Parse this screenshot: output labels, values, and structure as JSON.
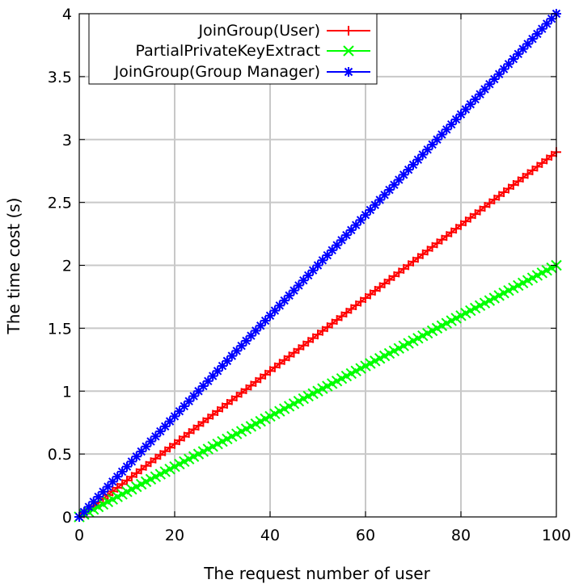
{
  "chart_data": {
    "type": "line",
    "title": "",
    "xlabel": "The request number of user",
    "ylabel": "The time cost (s)",
    "xlim": [
      0,
      100
    ],
    "ylim": [
      0,
      4
    ],
    "xticks": [
      0,
      20,
      40,
      60,
      80,
      100
    ],
    "yticks": [
      0,
      0.5,
      1,
      1.5,
      2,
      2.5,
      3,
      3.5,
      4
    ],
    "xtick_labels": [
      "0",
      "20",
      "40",
      "60",
      "80",
      "100"
    ],
    "ytick_labels": [
      "0",
      "0.5",
      "1",
      "1.5",
      "2",
      "2.5",
      "3",
      "3.5",
      "4"
    ],
    "grid": true,
    "legend_position": "top-left",
    "x_start": 0,
    "x_end": 100,
    "x_step": 1,
    "series": [
      {
        "name": "JoinGroup(User)",
        "color": "#ff0000",
        "marker": "plus",
        "y_end": 2.9
      },
      {
        "name": "PartialPrivateKeyExtract",
        "color": "#00ff00",
        "marker": "cross",
        "y_end": 2.0
      },
      {
        "name": "JoinGroup(Group Manager)",
        "color": "#0000ff",
        "marker": "star",
        "y_end": 4.0
      }
    ]
  }
}
